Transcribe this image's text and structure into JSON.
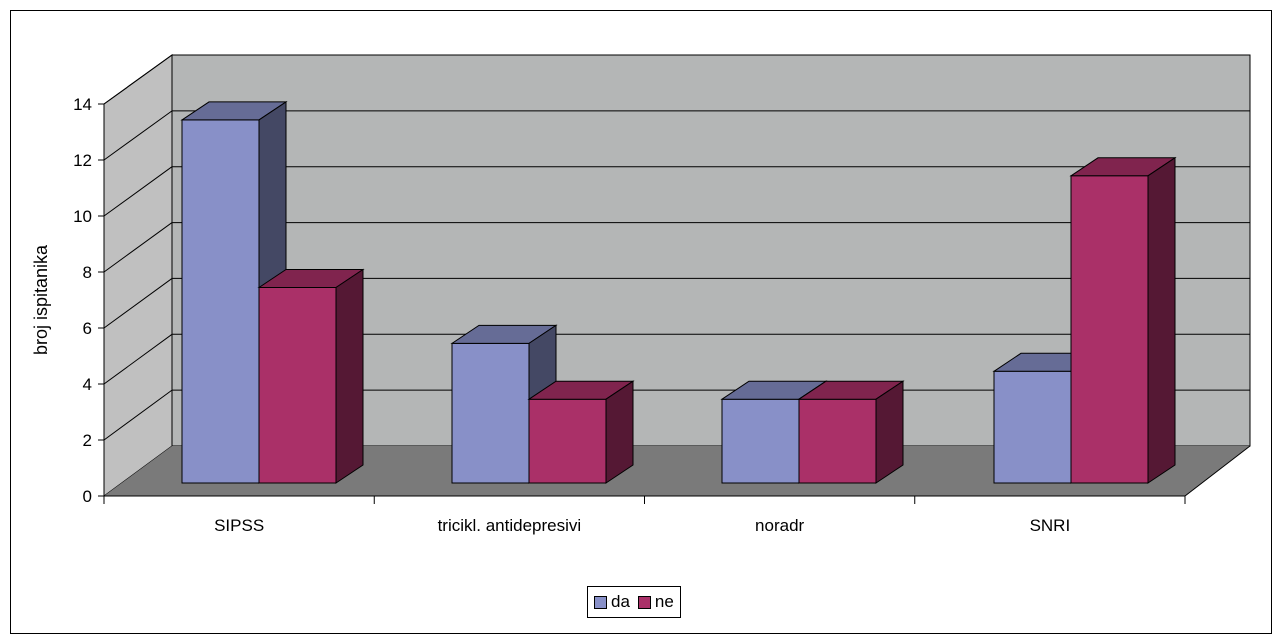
{
  "chart_data": {
    "type": "bar",
    "style": "3d-clustered-column",
    "categories": [
      "SIPSS",
      "tricikl. antidepresivi",
      "noradr",
      "SNRI"
    ],
    "series": [
      {
        "name": "da",
        "values": [
          13,
          5,
          3,
          4
        ],
        "color": "#8890c8"
      },
      {
        "name": "ne",
        "values": [
          7,
          3,
          3,
          11
        ],
        "color": "#aa3068"
      }
    ],
    "ylabel": "broj ispitanika",
    "ylim": [
      0,
      14
    ],
    "yticks": [
      "0",
      "2",
      "4",
      "6",
      "8",
      "10",
      "12",
      "14"
    ],
    "grid": true,
    "legend_position": "bottom",
    "colors": {
      "back_wall": "#b4b6b6",
      "side_wall": "#c0c0c0",
      "floor": "#7a7a7a"
    }
  }
}
